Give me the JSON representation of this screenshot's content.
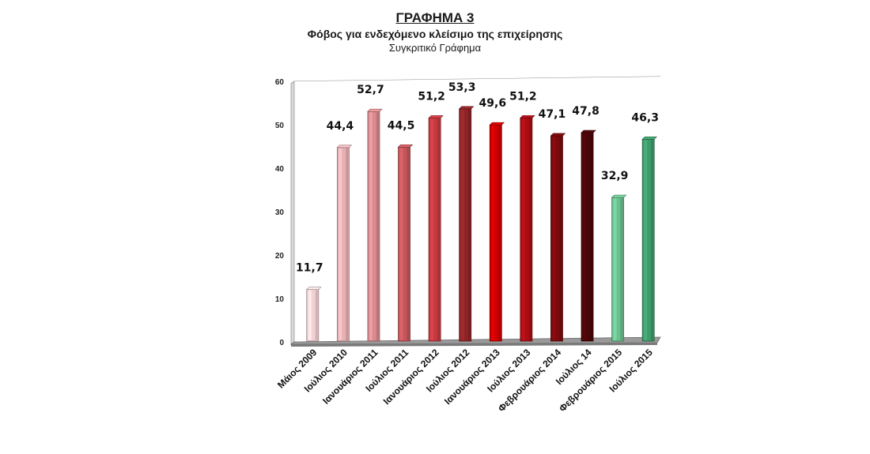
{
  "chart_data": {
    "type": "bar",
    "title": "ΓΡΑΦΗΜΑ 3",
    "subtitle": "Φόβος για ενδεχόμενο κλείσιμο της επιχείρησης",
    "caption": "Συγκριτικό Γράφημα",
    "xlabel": "",
    "ylabel": "",
    "ylim": [
      0,
      60
    ],
    "yticks": [
      0,
      10,
      20,
      30,
      40,
      50,
      60
    ],
    "grid": true,
    "categories": [
      "Μάιος 2009",
      "Ιούλιος 2010",
      "Ιανουάριος 2011",
      "Ιούλιος 2011",
      "Ιανουάριος 2012",
      "Ιούλιος 2012",
      "Ιανουάριος 2013",
      "Ιούλιος 2013",
      "Φεβρουάριος 2014",
      "Ιούλιος 14",
      "Φεβρουάριος 2015",
      "Ιούλιος 2015"
    ],
    "values": [
      11.7,
      44.4,
      52.7,
      44.5,
      51.2,
      53.3,
      49.6,
      51.2,
      47.1,
      47.8,
      32.9,
      46.3
    ],
    "value_labels": [
      "11,7",
      "44,4",
      "52,7",
      "44,5",
      "51,2",
      "53,3",
      "49,6",
      "51,2",
      "47,1",
      "47,8",
      "32,9",
      "46,3"
    ],
    "colors": [
      "#f3d0d2",
      "#e8b0b3",
      "#d98a8e",
      "#c2565b",
      "#c23a40",
      "#8f2428",
      "#cc0000",
      "#a80e14",
      "#7a0a0e",
      "#4a0608",
      "#6bbf8e",
      "#3f9a6a"
    ]
  }
}
